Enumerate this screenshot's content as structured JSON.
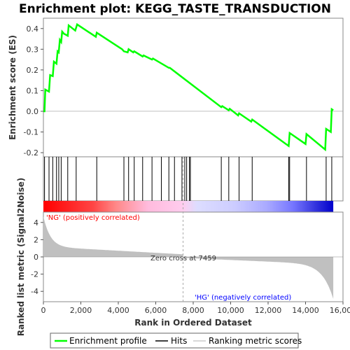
{
  "chart_data": {
    "type": "line",
    "title": "Enrichment plot: KEGG_TASTE_TRANSDUCTION",
    "es_panel": {
      "ylabel": "Enrichment score (ES)",
      "ylim": [
        -0.22,
        0.45
      ],
      "yticks": [
        -0.2,
        -0.1,
        0.0,
        0.1,
        0.2,
        0.3,
        0.4
      ],
      "ytick_labels": [
        "-0.2",
        "-0.1",
        "0.0",
        "0.1",
        "0.2",
        "0.3",
        "0.4"
      ],
      "series": [
        {
          "name": "Enrichment profile",
          "color": "#00ff00",
          "x": [
            0,
            60,
            100,
            300,
            360,
            500,
            560,
            700,
            760,
            820,
            880,
            950,
            1000,
            1100,
            1200,
            1300,
            1350,
            1700,
            1800,
            2800,
            2850,
            4200,
            4300,
            4500,
            4550,
            4800,
            4850,
            5300,
            5350,
            5800,
            5850,
            6700,
            6750,
            9500,
            9550,
            9900,
            9950,
            10400,
            10450,
            11100,
            11150,
            13100,
            13150,
            14000,
            14050,
            15050,
            15100,
            15350,
            15400,
            15480
          ],
          "y": [
            0.0,
            0.0,
            0.105,
            0.095,
            0.175,
            0.17,
            0.24,
            0.23,
            0.29,
            0.285,
            0.345,
            0.335,
            0.385,
            0.375,
            0.37,
            0.365,
            0.415,
            0.39,
            0.42,
            0.36,
            0.38,
            0.3,
            0.29,
            0.285,
            0.3,
            0.285,
            0.29,
            0.265,
            0.27,
            0.25,
            0.255,
            0.21,
            0.21,
            0.02,
            0.025,
            0.005,
            0.012,
            -0.02,
            -0.01,
            -0.05,
            -0.04,
            -0.168,
            -0.105,
            -0.158,
            -0.11,
            -0.185,
            -0.085,
            -0.1,
            0.01,
            0.005
          ]
        }
      ]
    },
    "hits_panel": {
      "hit_ranks": [
        60,
        300,
        500,
        700,
        820,
        950,
        1300,
        1750,
        2850,
        4300,
        4550,
        4850,
        5300,
        5800,
        6300,
        6700,
        7000,
        7400,
        7550,
        7650,
        7800,
        7850,
        9500,
        9900,
        10450,
        11150,
        13100,
        13150,
        14050,
        15100,
        15400
      ]
    },
    "metric_panel": {
      "ylabel": "Ranked list metric (Signal2Noise)",
      "ylim": [
        -5.2,
        5.2
      ],
      "yticks": [
        -4,
        -2,
        0,
        2,
        4
      ],
      "ytick_labels": [
        "-4",
        "-2",
        "0",
        "2",
        "4"
      ],
      "zero_cross_label": "Zero cross at 7459",
      "zero_cross": 7459,
      "pos_label": "'NG' (positively correlated)",
      "neg_label": "'HG' (negatively correlated)",
      "pos_color": "#ff0000",
      "neg_color": "#0000ff"
    },
    "xaxis": {
      "xlabel": "Rank in Ordered Dataset",
      "xlim": [
        0,
        16000
      ],
      "n_genes": 15480,
      "xticks": [
        0,
        2000,
        4000,
        6000,
        8000,
        10000,
        12000,
        14000,
        16000
      ],
      "xtick_labels": [
        "0",
        "2,000",
        "4,000",
        "6,000",
        "8,000",
        "10,000",
        "12,000",
        "14,000",
        "16,000"
      ]
    },
    "legend": {
      "items": [
        {
          "label": "Enrichment profile",
          "color": "#00ff00",
          "style": "line"
        },
        {
          "label": "Hits",
          "color": "#000000",
          "style": "line"
        },
        {
          "label": "Ranking metric scores",
          "color": "#cccccc",
          "style": "line"
        }
      ]
    }
  }
}
